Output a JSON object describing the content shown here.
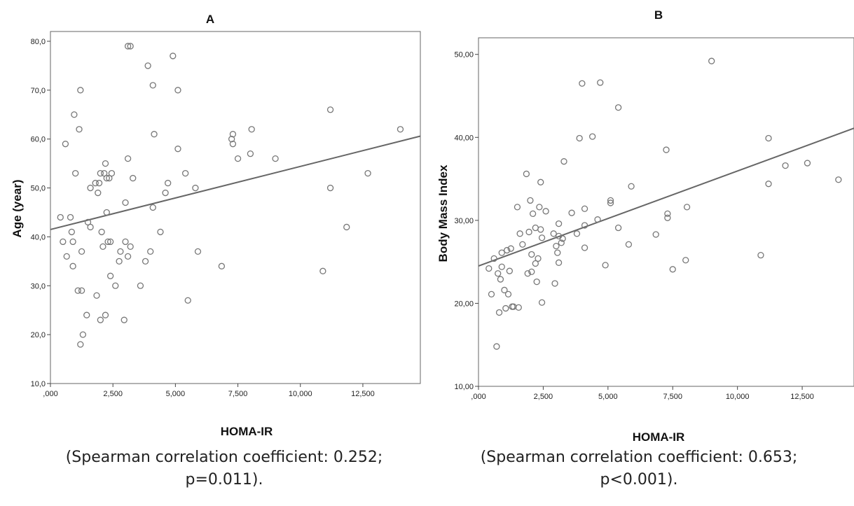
{
  "chart_data": [
    {
      "type": "scatter",
      "title": "A",
      "xlabel": "HOMA-IR",
      "ylabel": "Age (year)",
      "xlim": [
        0,
        14.8
      ],
      "ylim": [
        10,
        82
      ],
      "xticks": [
        0,
        2.5,
        5,
        7.5,
        10,
        12.5
      ],
      "xtick_labels": [
        ",000",
        "2,500",
        "5,000",
        "7,500",
        "10,000",
        "12,500"
      ],
      "yticks": [
        10,
        20,
        30,
        40,
        50,
        60,
        70,
        80
      ],
      "ytick_labels": [
        "10,0",
        "20,0",
        "30,0",
        "40,0",
        "50,0",
        "60,0",
        "70,0",
        "80,0"
      ],
      "fit_line": {
        "x": [
          0,
          14.8
        ],
        "y": [
          41.5,
          60.6
        ]
      },
      "points": [
        [
          0.4,
          44
        ],
        [
          0.5,
          39
        ],
        [
          0.6,
          59
        ],
        [
          0.65,
          36
        ],
        [
          0.8,
          44
        ],
        [
          0.85,
          41
        ],
        [
          0.9,
          39
        ],
        [
          0.9,
          34
        ],
        [
          0.95,
          65
        ],
        [
          1.0,
          53
        ],
        [
          1.1,
          29
        ],
        [
          1.15,
          62
        ],
        [
          1.2,
          70
        ],
        [
          1.2,
          18
        ],
        [
          1.25,
          37
        ],
        [
          1.25,
          29
        ],
        [
          1.3,
          20
        ],
        [
          1.45,
          24
        ],
        [
          1.5,
          43
        ],
        [
          1.6,
          42
        ],
        [
          1.6,
          50
        ],
        [
          1.8,
          51
        ],
        [
          1.85,
          28
        ],
        [
          1.9,
          49
        ],
        [
          1.95,
          51
        ],
        [
          2.0,
          53
        ],
        [
          2.0,
          23
        ],
        [
          2.05,
          41
        ],
        [
          2.1,
          38
        ],
        [
          2.15,
          53
        ],
        [
          2.2,
          24
        ],
        [
          2.2,
          55
        ],
        [
          2.25,
          52
        ],
        [
          2.25,
          45
        ],
        [
          2.3,
          39
        ],
        [
          2.35,
          52
        ],
        [
          2.4,
          39
        ],
        [
          2.4,
          32
        ],
        [
          2.45,
          53
        ],
        [
          2.6,
          30
        ],
        [
          2.75,
          35
        ],
        [
          2.8,
          37
        ],
        [
          2.95,
          23
        ],
        [
          3.0,
          39
        ],
        [
          3.0,
          47
        ],
        [
          3.1,
          36
        ],
        [
          3.1,
          56
        ],
        [
          3.1,
          79
        ],
        [
          3.2,
          79
        ],
        [
          3.2,
          38
        ],
        [
          3.3,
          52
        ],
        [
          3.6,
          30
        ],
        [
          3.8,
          35
        ],
        [
          3.9,
          75
        ],
        [
          4.0,
          37
        ],
        [
          4.1,
          71
        ],
        [
          4.15,
          61
        ],
        [
          4.1,
          46
        ],
        [
          4.4,
          41
        ],
        [
          4.6,
          49
        ],
        [
          4.7,
          51
        ],
        [
          4.9,
          77
        ],
        [
          5.1,
          58
        ],
        [
          5.1,
          70
        ],
        [
          5.4,
          53
        ],
        [
          5.5,
          27
        ],
        [
          5.8,
          50
        ],
        [
          5.9,
          37
        ],
        [
          6.85,
          34
        ],
        [
          7.25,
          60
        ],
        [
          7.3,
          61
        ],
        [
          7.3,
          59
        ],
        [
          7.5,
          56
        ],
        [
          8.0,
          57
        ],
        [
          8.05,
          62
        ],
        [
          9.0,
          56
        ],
        [
          10.9,
          33
        ],
        [
          11.2,
          66
        ],
        [
          11.2,
          50
        ],
        [
          11.85,
          42
        ],
        [
          12.7,
          53
        ],
        [
          14.0,
          62
        ]
      ]
    },
    {
      "type": "scatter",
      "title": "B",
      "xlabel": "HOMA-IR",
      "ylabel": "Body Mass Index",
      "xlim": [
        0,
        14.5
      ],
      "ylim": [
        10,
        52
      ],
      "xticks": [
        0,
        2.5,
        5,
        7.5,
        10,
        12.5
      ],
      "xtick_labels": [
        ",000",
        "2,500",
        "5,000",
        "7,500",
        "10,000",
        "12,500"
      ],
      "yticks": [
        10,
        20,
        30,
        40,
        50
      ],
      "ytick_labels": [
        "10,00",
        "20,00",
        "30,00",
        "40,00",
        "50,00"
      ],
      "fit_line": {
        "x": [
          0,
          14.5
        ],
        "y": [
          24.5,
          41.1
        ]
      },
      "points": [
        [
          0.4,
          24.2
        ],
        [
          0.5,
          21.1
        ],
        [
          0.6,
          25.4
        ],
        [
          0.7,
          14.8
        ],
        [
          0.75,
          23.6
        ],
        [
          0.8,
          18.9
        ],
        [
          0.85,
          22.9
        ],
        [
          0.9,
          24.4
        ],
        [
          0.9,
          26.1
        ],
        [
          1.0,
          21.6
        ],
        [
          1.05,
          19.4
        ],
        [
          1.1,
          26.4
        ],
        [
          1.15,
          21.1
        ],
        [
          1.2,
          23.9
        ],
        [
          1.25,
          26.6
        ],
        [
          1.3,
          19.6
        ],
        [
          1.35,
          19.6
        ],
        [
          1.5,
          31.6
        ],
        [
          1.55,
          19.5
        ],
        [
          1.6,
          28.4
        ],
        [
          1.7,
          27.1
        ],
        [
          1.85,
          35.6
        ],
        [
          1.9,
          23.6
        ],
        [
          1.95,
          28.6
        ],
        [
          2.0,
          32.4
        ],
        [
          2.05,
          23.8
        ],
        [
          2.05,
          25.9
        ],
        [
          2.1,
          30.8
        ],
        [
          2.2,
          29.1
        ],
        [
          2.2,
          24.8
        ],
        [
          2.25,
          22.6
        ],
        [
          2.3,
          25.4
        ],
        [
          2.35,
          31.6
        ],
        [
          2.4,
          28.9
        ],
        [
          2.4,
          34.6
        ],
        [
          2.45,
          27.9
        ],
        [
          2.45,
          20.1
        ],
        [
          2.6,
          31.1
        ],
        [
          2.9,
          28.4
        ],
        [
          2.95,
          22.4
        ],
        [
          3.0,
          26.9
        ],
        [
          3.05,
          26.1
        ],
        [
          3.1,
          24.9
        ],
        [
          3.1,
          29.6
        ],
        [
          3.1,
          28.1
        ],
        [
          3.2,
          27.3
        ],
        [
          3.25,
          27.8
        ],
        [
          3.3,
          37.1
        ],
        [
          3.6,
          30.9
        ],
        [
          3.8,
          28.4
        ],
        [
          3.9,
          39.9
        ],
        [
          4.0,
          46.5
        ],
        [
          4.1,
          26.7
        ],
        [
          4.1,
          29.4
        ],
        [
          4.1,
          31.4
        ],
        [
          4.4,
          40.1
        ],
        [
          4.6,
          30.1
        ],
        [
          4.7,
          46.6
        ],
        [
          4.9,
          24.6
        ],
        [
          5.1,
          32.4
        ],
        [
          5.1,
          32.1
        ],
        [
          5.4,
          43.6
        ],
        [
          5.4,
          29.1
        ],
        [
          5.8,
          27.1
        ],
        [
          5.9,
          34.1
        ],
        [
          6.85,
          28.3
        ],
        [
          7.25,
          38.5
        ],
        [
          7.3,
          30.8
        ],
        [
          7.3,
          30.3
        ],
        [
          7.5,
          24.1
        ],
        [
          8.0,
          25.2
        ],
        [
          8.05,
          31.6
        ],
        [
          9.0,
          49.2
        ],
        [
          10.9,
          25.8
        ],
        [
          11.2,
          39.9
        ],
        [
          11.2,
          34.4
        ],
        [
          11.85,
          36.6
        ],
        [
          12.7,
          36.9
        ],
        [
          13.9,
          34.9
        ]
      ]
    }
  ],
  "captions": {
    "a_line1": "(Spearman correlation coefficient: 0.252;",
    "a_line2": "p=0.011).",
    "b_line1": "(Spearman correlation coefficient: 0.653;",
    "b_line2": "p<0.001)."
  }
}
